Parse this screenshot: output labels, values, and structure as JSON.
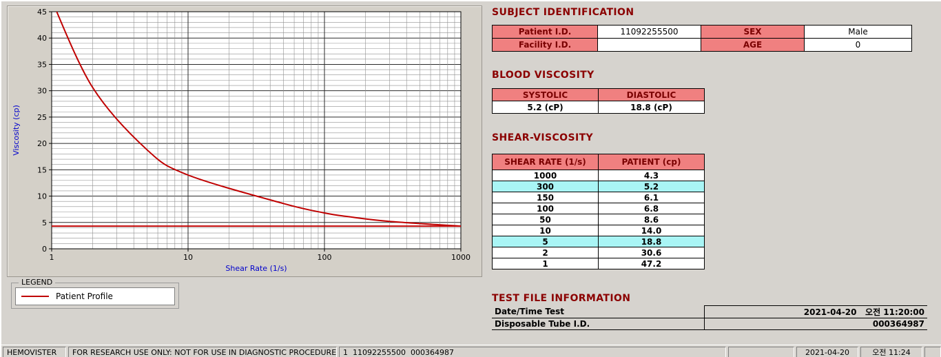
{
  "colors": {
    "accent": "#8b0000",
    "table_header_bg": "#f08080",
    "highlight_bg": "#a9f5f5",
    "curve": "#c00000",
    "axis_label": "#0000cc"
  },
  "chart_data": {
    "type": "line",
    "xlabel": "Shear Rate (1/s)",
    "ylabel": "Viscosity (cp)",
    "xscale": "log",
    "xlim": [
      1,
      1000
    ],
    "ylim": [
      0,
      45
    ],
    "xticks": [
      1,
      10,
      100,
      1000
    ],
    "yticks": [
      0,
      5,
      10,
      15,
      20,
      25,
      30,
      35,
      40,
      45
    ],
    "grid": true,
    "legend_position": "below-left",
    "series": [
      {
        "name": "Patient Profile",
        "x": [
          1,
          2,
          5,
          10,
          50,
          100,
          150,
          300,
          1000
        ],
        "values": [
          47.2,
          30.6,
          18.8,
          14.0,
          8.6,
          6.8,
          6.1,
          5.2,
          4.3
        ]
      }
    ],
    "reference_line_y": 4.3
  },
  "legend": {
    "title": "LEGEND",
    "items": [
      {
        "label": "Patient Profile"
      }
    ]
  },
  "subject": {
    "title": "SUBJECT IDENTIFICATION",
    "rows": [
      {
        "label1": "Patient I.D.",
        "value1": "11092255500",
        "label2": "SEX",
        "value2": "Male"
      },
      {
        "label1": "Facility I.D.",
        "value1": "",
        "label2": "AGE",
        "value2": "0"
      }
    ]
  },
  "blood_viscosity": {
    "title": "BLOOD VISCOSITY",
    "headers": [
      "SYSTOLIC",
      "DIASTOLIC"
    ],
    "values": [
      "5.2 (cP)",
      "18.8 (cP)"
    ]
  },
  "shear_viscosity": {
    "title": "SHEAR-VISCOSITY",
    "headers": [
      "SHEAR RATE (1/s)",
      "PATIENT (cp)"
    ],
    "rows": [
      {
        "shear_rate": "1000",
        "patient": "4.3",
        "highlight": false
      },
      {
        "shear_rate": "300",
        "patient": "5.2",
        "highlight": true
      },
      {
        "shear_rate": "150",
        "patient": "6.1",
        "highlight": false
      },
      {
        "shear_rate": "100",
        "patient": "6.8",
        "highlight": false
      },
      {
        "shear_rate": "50",
        "patient": "8.6",
        "highlight": false
      },
      {
        "shear_rate": "10",
        "patient": "14.0",
        "highlight": false
      },
      {
        "shear_rate": "5",
        "patient": "18.8",
        "highlight": true
      },
      {
        "shear_rate": "2",
        "patient": "30.6",
        "highlight": false
      },
      {
        "shear_rate": "1",
        "patient": "47.2",
        "highlight": false
      }
    ]
  },
  "test_file": {
    "title": "TEST FILE INFORMATION",
    "rows": [
      {
        "label": "Date/Time Test",
        "value": "2021-04-20   오전 11:20:00"
      },
      {
        "label": "Disposable Tube I.D.",
        "value": "000364987"
      }
    ]
  },
  "status_bar": {
    "app_name": "HEMOVISTER",
    "notice": "FOR RESEARCH USE ONLY: NOT FOR USE IN DIAGNOSTIC PROCEDURES",
    "record": "1  11092255500  000364987",
    "date": "2021-04-20",
    "time": "오전 11:24"
  }
}
